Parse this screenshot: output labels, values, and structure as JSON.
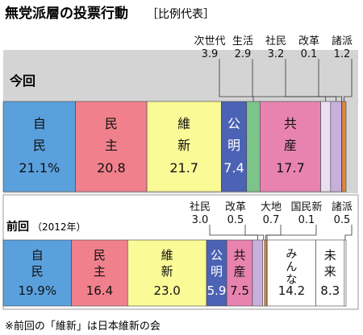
{
  "header": {
    "title": "無党派層の投票行動",
    "subtitle": "［比例代表］"
  },
  "footnote": "※前回の「維新」は日本維新の会",
  "chart_data": [
    {
      "type": "bar",
      "stacked": true,
      "label": "今回",
      "total": 100,
      "segments": [
        {
          "name": "自民",
          "value": 21.1,
          "display": "21.1%",
          "color": "#5aa0dd"
        },
        {
          "name": "民主",
          "value": 20.8,
          "display": "20.8",
          "color": "#f0808c"
        },
        {
          "name": "維新",
          "value": 21.7,
          "display": "21.7",
          "color": "#fafa96"
        },
        {
          "name": "公明",
          "value": 7.4,
          "display": "7.4",
          "color": "#4c62b4"
        },
        {
          "name": "次世代",
          "value": 3.9,
          "display": "3.9",
          "color": "#7cc48a"
        },
        {
          "name": "共産",
          "value": 17.7,
          "display": "17.7",
          "color": "#e883b0"
        },
        {
          "name": "生活",
          "value": 2.9,
          "display": "2.9",
          "color": "#e8e0f0"
        },
        {
          "name": "社民",
          "value": 3.2,
          "display": "3.2",
          "color": "#c8b0dc"
        },
        {
          "name": "改革",
          "value": 0.1,
          "display": "0.1",
          "color": "#ffffff"
        },
        {
          "name": "諸派",
          "value": 1.2,
          "display": "1.2",
          "color": "#e0883a"
        }
      ]
    },
    {
      "type": "bar",
      "stacked": true,
      "label": "前回",
      "label_sub": "（2012年）",
      "total": 100,
      "segments": [
        {
          "name": "自民",
          "value": 19.9,
          "display": "19.9%",
          "color": "#5aa0dd"
        },
        {
          "name": "民主",
          "value": 16.4,
          "display": "16.4",
          "color": "#f0808c"
        },
        {
          "name": "維新",
          "value": 23.0,
          "display": "23.0",
          "color": "#fafa96"
        },
        {
          "name": "公明",
          "value": 5.9,
          "display": "5.9",
          "color": "#4c62b4"
        },
        {
          "name": "共産",
          "value": 7.5,
          "display": "7.5",
          "color": "#e883b0"
        },
        {
          "name": "社民",
          "value": 3.0,
          "display": "3.0",
          "color": "#c8b0dc"
        },
        {
          "name": "改革",
          "value": 0.5,
          "display": "0.5",
          "color": "#ffffff"
        },
        {
          "name": "大地",
          "value": 0.7,
          "display": "0.7",
          "color": "#e0883a"
        },
        {
          "name": "国民新",
          "value": 0.1,
          "display": "0.1",
          "color": "#ffffff"
        },
        {
          "name": "みんな",
          "value": 14.2,
          "display": "14.2",
          "color": "#ffffff"
        },
        {
          "name": "未来",
          "value": 8.3,
          "display": "8.3",
          "color": "#ffffff"
        },
        {
          "name": "諸派",
          "value": 0.5,
          "display": "0.5",
          "color": "#ffffff"
        }
      ]
    }
  ]
}
